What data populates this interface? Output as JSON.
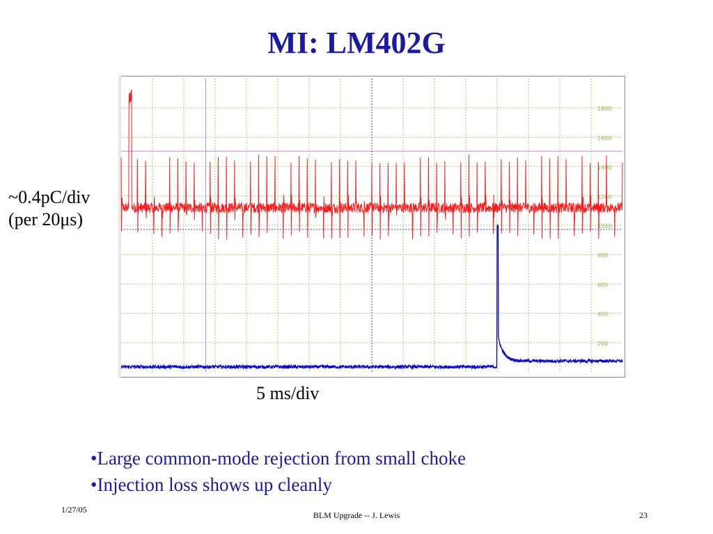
{
  "slide": {
    "title": "MI: LM402G",
    "ylabel_line1": "~0.4pC/div",
    "ylabel_line2": "(per 20μs)",
    "xlabel": "5 ms/div",
    "bullets": [
      "•Large common-mode rejection from small choke",
      "•Injection loss shows up cleanly"
    ],
    "footer": {
      "date": "1/27/05",
      "center": "BLM Upgrade -- J. Lewis",
      "page": "23"
    }
  },
  "chart_data": {
    "type": "line",
    "title": "",
    "xlabel": "5 ms/div",
    "ylabel": "~0.4pC/div (per 20μs)",
    "ylim": [
      0,
      2000
    ],
    "yticks": [
      200,
      400,
      600,
      800,
      1000,
      1200,
      1400,
      1600,
      1800
    ],
    "x_divisions": 16,
    "x_unit_per_div_ms": 5,
    "grid": true,
    "colors": {
      "series_red": "#ff1a1a",
      "series_blue": "#0000dd",
      "grid": "#a8c878",
      "frame": "#888888",
      "marker_magenta": "#e080e0",
      "marker_blue": "#3b3bcc"
    },
    "series": [
      {
        "color": "red",
        "baseline": 1120,
        "spike_peak": 1480,
        "spike_low": 900,
        "spike_count": 62,
        "initial_spike_peak": 1930
      },
      {
        "color": "blue",
        "baseline": 35,
        "step_time_ms": 60,
        "step_peak": 1000,
        "post_step_level": 75
      }
    ]
  }
}
